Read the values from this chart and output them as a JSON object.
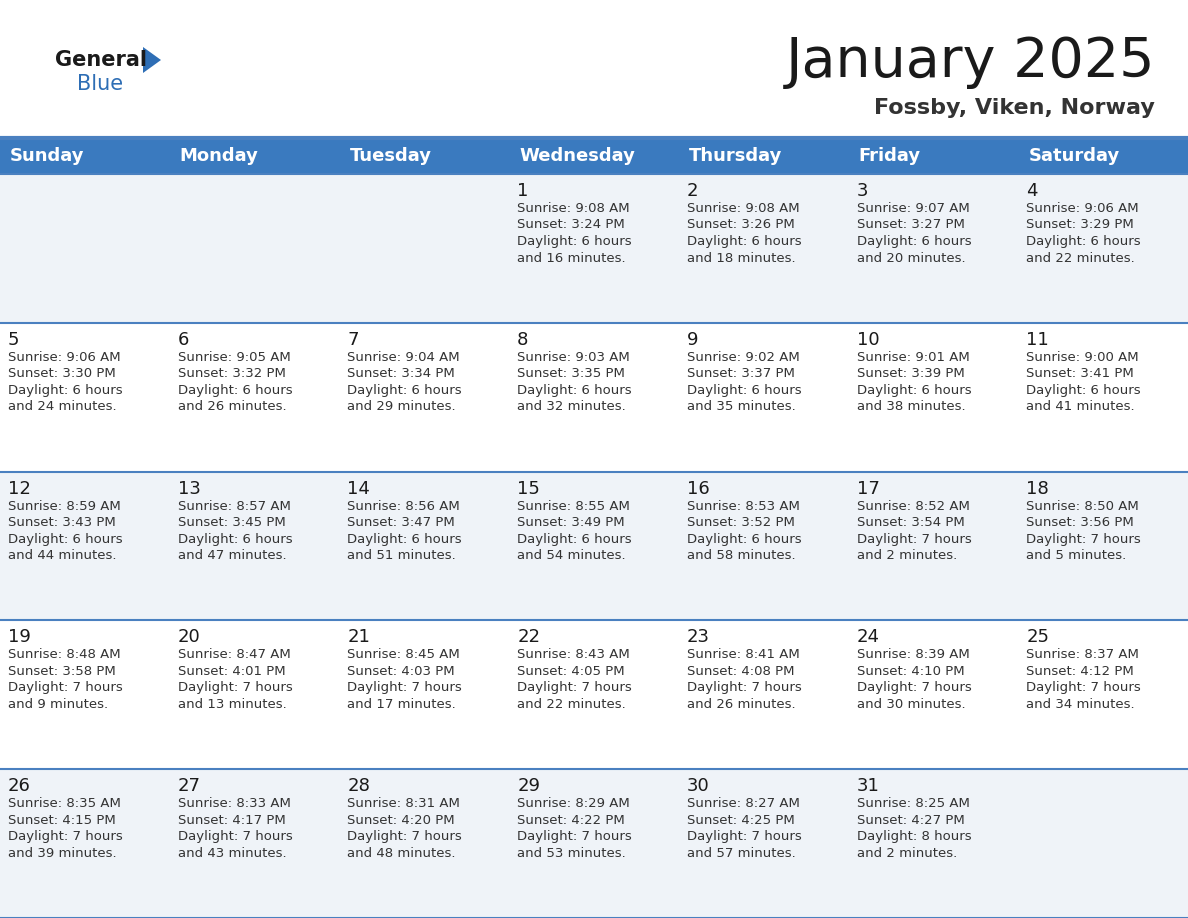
{
  "title": "January 2025",
  "subtitle": "Fossby, Viken, Norway",
  "days_of_week": [
    "Sunday",
    "Monday",
    "Tuesday",
    "Wednesday",
    "Thursday",
    "Friday",
    "Saturday"
  ],
  "header_bg": "#3a7abf",
  "header_text": "#ffffff",
  "row_bg_light": "#eff3f8",
  "row_bg_white": "#ffffff",
  "cell_border_color": "#4a80c0",
  "day_num_color": "#1a1a1a",
  "info_color": "#333333",
  "title_color": "#1a1a1a",
  "subtitle_color": "#333333",
  "logo_general_color": "#1a1a1a",
  "logo_blue_color": "#2e6eb5",
  "weeks": [
    [
      {
        "day": null,
        "info": ""
      },
      {
        "day": null,
        "info": ""
      },
      {
        "day": null,
        "info": ""
      },
      {
        "day": 1,
        "info": "Sunrise: 9:08 AM\nSunset: 3:24 PM\nDaylight: 6 hours\nand 16 minutes."
      },
      {
        "day": 2,
        "info": "Sunrise: 9:08 AM\nSunset: 3:26 PM\nDaylight: 6 hours\nand 18 minutes."
      },
      {
        "day": 3,
        "info": "Sunrise: 9:07 AM\nSunset: 3:27 PM\nDaylight: 6 hours\nand 20 minutes."
      },
      {
        "day": 4,
        "info": "Sunrise: 9:06 AM\nSunset: 3:29 PM\nDaylight: 6 hours\nand 22 minutes."
      }
    ],
    [
      {
        "day": 5,
        "info": "Sunrise: 9:06 AM\nSunset: 3:30 PM\nDaylight: 6 hours\nand 24 minutes."
      },
      {
        "day": 6,
        "info": "Sunrise: 9:05 AM\nSunset: 3:32 PM\nDaylight: 6 hours\nand 26 minutes."
      },
      {
        "day": 7,
        "info": "Sunrise: 9:04 AM\nSunset: 3:34 PM\nDaylight: 6 hours\nand 29 minutes."
      },
      {
        "day": 8,
        "info": "Sunrise: 9:03 AM\nSunset: 3:35 PM\nDaylight: 6 hours\nand 32 minutes."
      },
      {
        "day": 9,
        "info": "Sunrise: 9:02 AM\nSunset: 3:37 PM\nDaylight: 6 hours\nand 35 minutes."
      },
      {
        "day": 10,
        "info": "Sunrise: 9:01 AM\nSunset: 3:39 PM\nDaylight: 6 hours\nand 38 minutes."
      },
      {
        "day": 11,
        "info": "Sunrise: 9:00 AM\nSunset: 3:41 PM\nDaylight: 6 hours\nand 41 minutes."
      }
    ],
    [
      {
        "day": 12,
        "info": "Sunrise: 8:59 AM\nSunset: 3:43 PM\nDaylight: 6 hours\nand 44 minutes."
      },
      {
        "day": 13,
        "info": "Sunrise: 8:57 AM\nSunset: 3:45 PM\nDaylight: 6 hours\nand 47 minutes."
      },
      {
        "day": 14,
        "info": "Sunrise: 8:56 AM\nSunset: 3:47 PM\nDaylight: 6 hours\nand 51 minutes."
      },
      {
        "day": 15,
        "info": "Sunrise: 8:55 AM\nSunset: 3:49 PM\nDaylight: 6 hours\nand 54 minutes."
      },
      {
        "day": 16,
        "info": "Sunrise: 8:53 AM\nSunset: 3:52 PM\nDaylight: 6 hours\nand 58 minutes."
      },
      {
        "day": 17,
        "info": "Sunrise: 8:52 AM\nSunset: 3:54 PM\nDaylight: 7 hours\nand 2 minutes."
      },
      {
        "day": 18,
        "info": "Sunrise: 8:50 AM\nSunset: 3:56 PM\nDaylight: 7 hours\nand 5 minutes."
      }
    ],
    [
      {
        "day": 19,
        "info": "Sunrise: 8:48 AM\nSunset: 3:58 PM\nDaylight: 7 hours\nand 9 minutes."
      },
      {
        "day": 20,
        "info": "Sunrise: 8:47 AM\nSunset: 4:01 PM\nDaylight: 7 hours\nand 13 minutes."
      },
      {
        "day": 21,
        "info": "Sunrise: 8:45 AM\nSunset: 4:03 PM\nDaylight: 7 hours\nand 17 minutes."
      },
      {
        "day": 22,
        "info": "Sunrise: 8:43 AM\nSunset: 4:05 PM\nDaylight: 7 hours\nand 22 minutes."
      },
      {
        "day": 23,
        "info": "Sunrise: 8:41 AM\nSunset: 4:08 PM\nDaylight: 7 hours\nand 26 minutes."
      },
      {
        "day": 24,
        "info": "Sunrise: 8:39 AM\nSunset: 4:10 PM\nDaylight: 7 hours\nand 30 minutes."
      },
      {
        "day": 25,
        "info": "Sunrise: 8:37 AM\nSunset: 4:12 PM\nDaylight: 7 hours\nand 34 minutes."
      }
    ],
    [
      {
        "day": 26,
        "info": "Sunrise: 8:35 AM\nSunset: 4:15 PM\nDaylight: 7 hours\nand 39 minutes."
      },
      {
        "day": 27,
        "info": "Sunrise: 8:33 AM\nSunset: 4:17 PM\nDaylight: 7 hours\nand 43 minutes."
      },
      {
        "day": 28,
        "info": "Sunrise: 8:31 AM\nSunset: 4:20 PM\nDaylight: 7 hours\nand 48 minutes."
      },
      {
        "day": 29,
        "info": "Sunrise: 8:29 AM\nSunset: 4:22 PM\nDaylight: 7 hours\nand 53 minutes."
      },
      {
        "day": 30,
        "info": "Sunrise: 8:27 AM\nSunset: 4:25 PM\nDaylight: 7 hours\nand 57 minutes."
      },
      {
        "day": 31,
        "info": "Sunrise: 8:25 AM\nSunset: 4:27 PM\nDaylight: 8 hours\nand 2 minutes."
      },
      {
        "day": null,
        "info": ""
      }
    ]
  ]
}
